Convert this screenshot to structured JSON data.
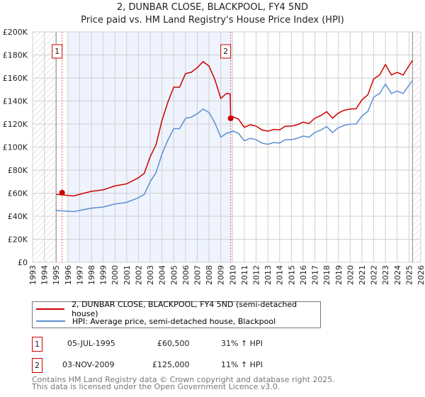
{
  "chart_data": {
    "type": "line",
    "title": "2, DUNBAR CLOSE, BLACKPOOL, FY4 5ND",
    "subtitle": "Price paid vs. HM Land Registry's House Price Index (HPI)",
    "xlim": [
      1993,
      2026
    ],
    "ylim": [
      0,
      200000
    ],
    "x_ticks": [
      "1993",
      "1994",
      "1995",
      "1996",
      "1997",
      "1998",
      "1999",
      "2000",
      "2001",
      "2002",
      "2003",
      "2004",
      "2005",
      "2006",
      "2007",
      "2008",
      "2009",
      "2010",
      "2011",
      "2012",
      "2013",
      "2014",
      "2015",
      "2016",
      "2017",
      "2018",
      "2019",
      "2020",
      "2021",
      "2022",
      "2023",
      "2024",
      "2025",
      "2026"
    ],
    "y_ticks": [
      {
        "v": 0,
        "l": "£0"
      },
      {
        "v": 20000,
        "l": "£20K"
      },
      {
        "v": 40000,
        "l": "£40K"
      },
      {
        "v": 60000,
        "l": "£60K"
      },
      {
        "v": 80000,
        "l": "£80K"
      },
      {
        "v": 100000,
        "l": "£100K"
      },
      {
        "v": 120000,
        "l": "£120K"
      },
      {
        "v": 140000,
        "l": "£140K"
      },
      {
        "v": 160000,
        "l": "£160K"
      },
      {
        "v": 180000,
        "l": "£180K"
      },
      {
        "v": 200000,
        "l": "£200K"
      }
    ],
    "grid": true,
    "hatched_ranges": [
      [
        1993,
        1995
      ],
      [
        2025.3,
        2026
      ]
    ],
    "shaded_range": [
      1996,
      2010
    ],
    "series": [
      {
        "name": "2, DUNBAR CLOSE, BLACKPOOL, FY4 5ND (semi-detached house)",
        "color": "#cc0000",
        "x": [
          1995,
          1996.5,
          1997,
          1998,
          1999,
          2000,
          2001,
          2002,
          2002.5,
          2003,
          2003.5,
          2004,
          2004.5,
          2005,
          2005.5,
          2006,
          2006.5,
          2007,
          2007.5,
          2008,
          2008.5,
          2009,
          2009.5,
          2009.8,
          2009.84,
          2010,
          2010.5,
          2011,
          2011.5,
          2012,
          2012.5,
          2013,
          2013.5,
          2014,
          2014.5,
          2015,
          2015.5,
          2016,
          2016.5,
          2017,
          2017.5,
          2018,
          2018.5,
          2019,
          2019.5,
          2020,
          2020.5,
          2021,
          2021.5,
          2022,
          2022.5,
          2023,
          2023.5,
          2024,
          2024.5,
          2025,
          2025.3
        ],
        "y": [
          59000,
          57600,
          59000,
          61600,
          62900,
          66300,
          68100,
          73400,
          77300,
          91700,
          102200,
          123100,
          138900,
          152000,
          152000,
          163800,
          165000,
          169000,
          174200,
          170300,
          158500,
          142300,
          146700,
          146000,
          125000,
          126500,
          124300,
          117100,
          119400,
          118200,
          114900,
          113800,
          115400,
          114900,
          118200,
          118200,
          119400,
          121700,
          120500,
          125100,
          127400,
          130800,
          125100,
          129600,
          132000,
          133100,
          133200,
          141000,
          145400,
          159200,
          162600,
          171700,
          162600,
          164900,
          162600,
          170600,
          175200
        ]
      },
      {
        "name": "HPI: Average price, semi-detached house, Blackpool",
        "color": "#5b8fd0",
        "x": [
          1995,
          1996.5,
          1997,
          1998,
          1999,
          2000,
          2001,
          2002,
          2002.5,
          2003,
          2003.5,
          2004,
          2004.5,
          2005,
          2005.5,
          2006,
          2006.5,
          2007,
          2007.5,
          2008,
          2008.5,
          2009,
          2009.5,
          2009.84,
          2010,
          2010.5,
          2011,
          2011.5,
          2012,
          2012.5,
          2013,
          2013.5,
          2014,
          2014.5,
          2015,
          2015.5,
          2016,
          2016.5,
          2017,
          2017.5,
          2018,
          2018.5,
          2019,
          2019.5,
          2020,
          2020.5,
          2021,
          2021.5,
          2022,
          2022.5,
          2023,
          2023.5,
          2024,
          2024.5,
          2025,
          2025.3
        ],
        "y": [
          45000,
          44000,
          45000,
          47000,
          48000,
          50600,
          52000,
          56000,
          59000,
          70000,
          78000,
          94000,
          106000,
          116000,
          116000,
          125000,
          126000,
          129000,
          133000,
          130000,
          121000,
          108600,
          112000,
          113000,
          114000,
          112000,
          105500,
          107600,
          106500,
          103500,
          102500,
          104000,
          103500,
          106500,
          106500,
          107600,
          109600,
          108600,
          112700,
          114800,
          117800,
          112700,
          116800,
          118900,
          119900,
          120000,
          127000,
          131000,
          143400,
          146500,
          154700,
          146500,
          148600,
          146500,
          153700,
          157800
        ]
      }
    ],
    "sales": [
      {
        "label": "1",
        "x": 1995.51,
        "y": 60500,
        "date": "05-JUL-1995",
        "price": "£60,500",
        "hpi": "31% ↑ HPI"
      },
      {
        "label": "2",
        "x": 2009.84,
        "y": 125000,
        "date": "03-NOV-2009",
        "price": "£125,000",
        "hpi": "11% ↑ HPI"
      }
    ]
  },
  "footer": {
    "line1": "Contains HM Land Registry data © Crown copyright and database right 2025.",
    "line2": "This data is licensed under the Open Government Licence v3.0."
  }
}
